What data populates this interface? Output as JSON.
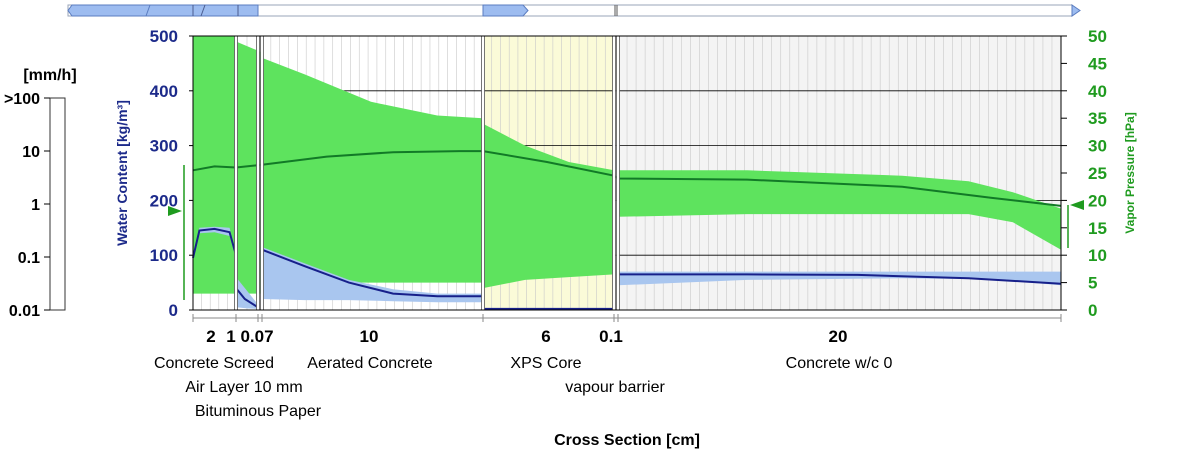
{
  "chart_data": {
    "type": "area",
    "xlabel": "Cross Section [cm]",
    "ylabel_left": "Water Content [kg/m³]",
    "ylabel_right": "Vapor Pressure [hPa]",
    "ylim_left": [
      0,
      500
    ],
    "ylim_right": [
      0,
      50
    ],
    "yticks_left": [
      "0",
      "100",
      "200",
      "300",
      "400",
      "500"
    ],
    "yticks_right": [
      "0",
      "5",
      "10",
      "15",
      "20",
      "25",
      "30",
      "35",
      "40",
      "45",
      "50"
    ],
    "rain_scale": {
      "label": "[mm/h]",
      "ticks": [
        ">100",
        "10",
        "1",
        "0.1",
        "0.01"
      ]
    },
    "layers": [
      {
        "thickness": "2",
        "name": "Concrete Screed"
      },
      {
        "thickness": "1",
        "name": "Air Layer 10 mm"
      },
      {
        "thickness": "0.07",
        "name": "Bituminous Paper"
      },
      {
        "thickness": "10",
        "name": "Aerated Concrete"
      },
      {
        "thickness": "6",
        "name": "XPS Core"
      },
      {
        "thickness": "0.1",
        "name": "vapour barrier"
      },
      {
        "thickness": "20",
        "name": "Concrete w/c 0"
      }
    ],
    "series": [
      {
        "name": "Water Content",
        "x": [
          0.0,
          0.3,
          1.0,
          1.7,
          2.0
        ],
        "y": [
          95,
          145,
          148,
          142,
          100
        ]
      },
      {
        "name": "Water Content",
        "x": [
          2.0,
          2.4,
          3.0
        ],
        "y": [
          40,
          20,
          5
        ]
      },
      {
        "name": "Water Content",
        "x": [
          3.07,
          5,
          7,
          9,
          11,
          13.07
        ],
        "y": [
          110,
          80,
          50,
          30,
          25,
          25
        ]
      },
      {
        "name": "Water Content",
        "x": [
          13.07,
          19.07
        ],
        "y": [
          2,
          2
        ]
      },
      {
        "name": "Water Content",
        "x": [
          19.17,
          25,
          30,
          35,
          39.17
        ],
        "y": [
          65,
          65,
          64,
          58,
          48
        ]
      },
      {
        "name": "Vapor Pressure",
        "x": [
          0.0,
          1.0,
          2.0,
          3.07,
          6,
          9,
          12,
          13.07,
          16,
          19.07,
          19.17,
          25,
          32,
          36,
          39.17
        ],
        "y": [
          25.5,
          26.2,
          26,
          26.5,
          28,
          28.8,
          29,
          29,
          27,
          24.5,
          24,
          23.8,
          22.5,
          20.5,
          19
        ]
      }
    ]
  }
}
